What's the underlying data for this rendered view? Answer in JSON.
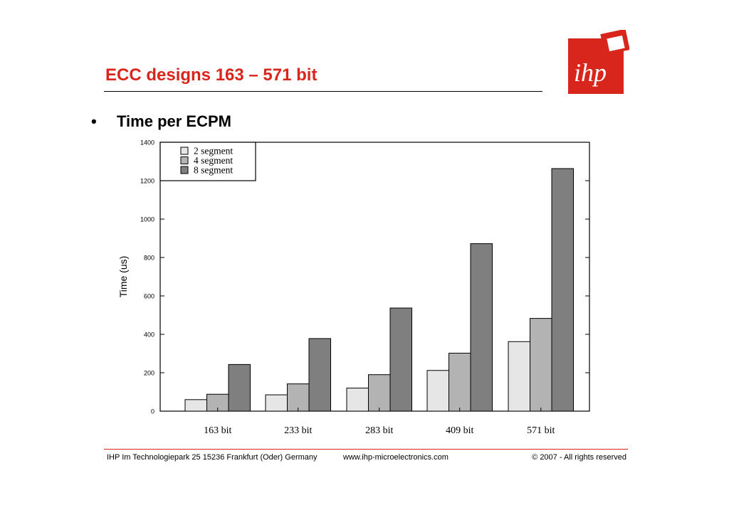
{
  "slide": {
    "title": "ECC designs 163 – 571 bit",
    "bullet_symbol": "•",
    "bullet_text": "Time per ECPM",
    "logo_text": "ihp"
  },
  "footer": {
    "address": "IHP  Im Technologiepark 25  15236 Frankfurt (Oder) Germany",
    "website": "www.ihp-microelectronics.com",
    "copyright": "© 2007 - All rights reserved"
  },
  "colors": {
    "accent": "#d9261c",
    "series_2_segment": "#e6e6e6",
    "series_4_segment": "#b3b3b3",
    "series_8_segment": "#7f7f7f"
  },
  "chart_data": {
    "type": "bar",
    "title": "",
    "xlabel": "",
    "ylabel": "Time (us)",
    "ylim": [
      0,
      1400
    ],
    "yticks": [
      0,
      200,
      400,
      600,
      800,
      1000,
      1200,
      1400
    ],
    "grid": false,
    "legend_position": "top-left",
    "categories": [
      "163 bit",
      "233 bit",
      "283 bit",
      "409 bit",
      "571 bit"
    ],
    "series": [
      {
        "name": "2 segment",
        "values": [
          60,
          85,
          120,
          212,
          362
        ]
      },
      {
        "name": "4 segment",
        "values": [
          88,
          142,
          190,
          302,
          483
        ]
      },
      {
        "name": "8 segment",
        "values": [
          243,
          378,
          537,
          872,
          1263
        ]
      }
    ]
  }
}
